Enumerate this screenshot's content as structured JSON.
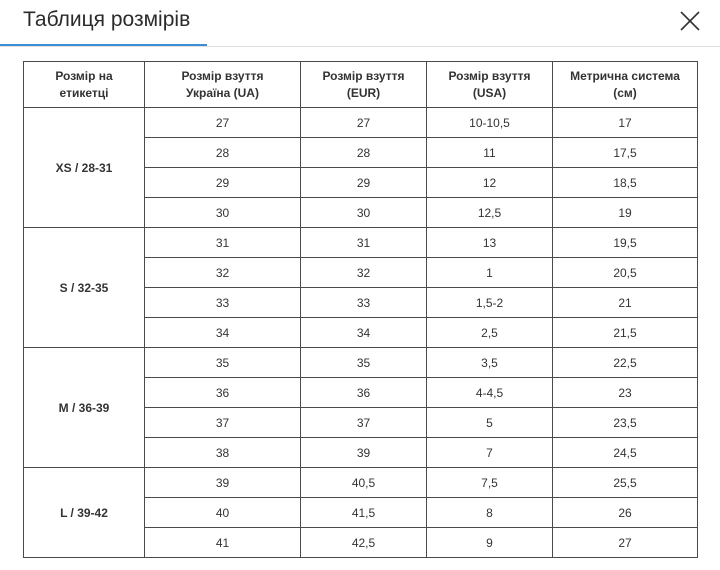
{
  "dialog": {
    "title": "Таблиця розмірів",
    "close_icon": "close-icon"
  },
  "table": {
    "headers": [
      "Розмір на\nетикетці",
      "Розмір взуття\nУкраїна (UA)",
      "Розмір взуття\n(EUR)",
      "Розмір взуття\n(USA)",
      "Метрична система\n(см)"
    ],
    "groups": [
      {
        "label": "XS / 28-31",
        "rows": [
          [
            "27",
            "27",
            "10-10,5",
            "17"
          ],
          [
            "28",
            "28",
            "11",
            "17,5"
          ],
          [
            "29",
            "29",
            "12",
            "18,5"
          ],
          [
            "30",
            "30",
            "12,5",
            "19"
          ]
        ]
      },
      {
        "label": "S / 32-35",
        "rows": [
          [
            "31",
            "31",
            "13",
            "19,5"
          ],
          [
            "32",
            "32",
            "1",
            "20,5"
          ],
          [
            "33",
            "33",
            "1,5-2",
            "21"
          ],
          [
            "34",
            "34",
            "2,5",
            "21,5"
          ]
        ]
      },
      {
        "label": "M / 36-39",
        "rows": [
          [
            "35",
            "35",
            "3,5",
            "22,5"
          ],
          [
            "36",
            "36",
            "4-4,5",
            "23"
          ],
          [
            "37",
            "37",
            "5",
            "23,5"
          ],
          [
            "38",
            "39",
            "7",
            "24,5"
          ]
        ]
      },
      {
        "label": "L / 39-42",
        "rows": [
          [
            "39",
            "40,5",
            "7,5",
            "25,5"
          ],
          [
            "40",
            "41,5",
            "8",
            "26"
          ],
          [
            "41",
            "42,5",
            "9",
            "27"
          ]
        ]
      }
    ]
  },
  "colors": {
    "accent": "#3a8ed3",
    "border": "#4a4a4a",
    "text": "#333333"
  }
}
